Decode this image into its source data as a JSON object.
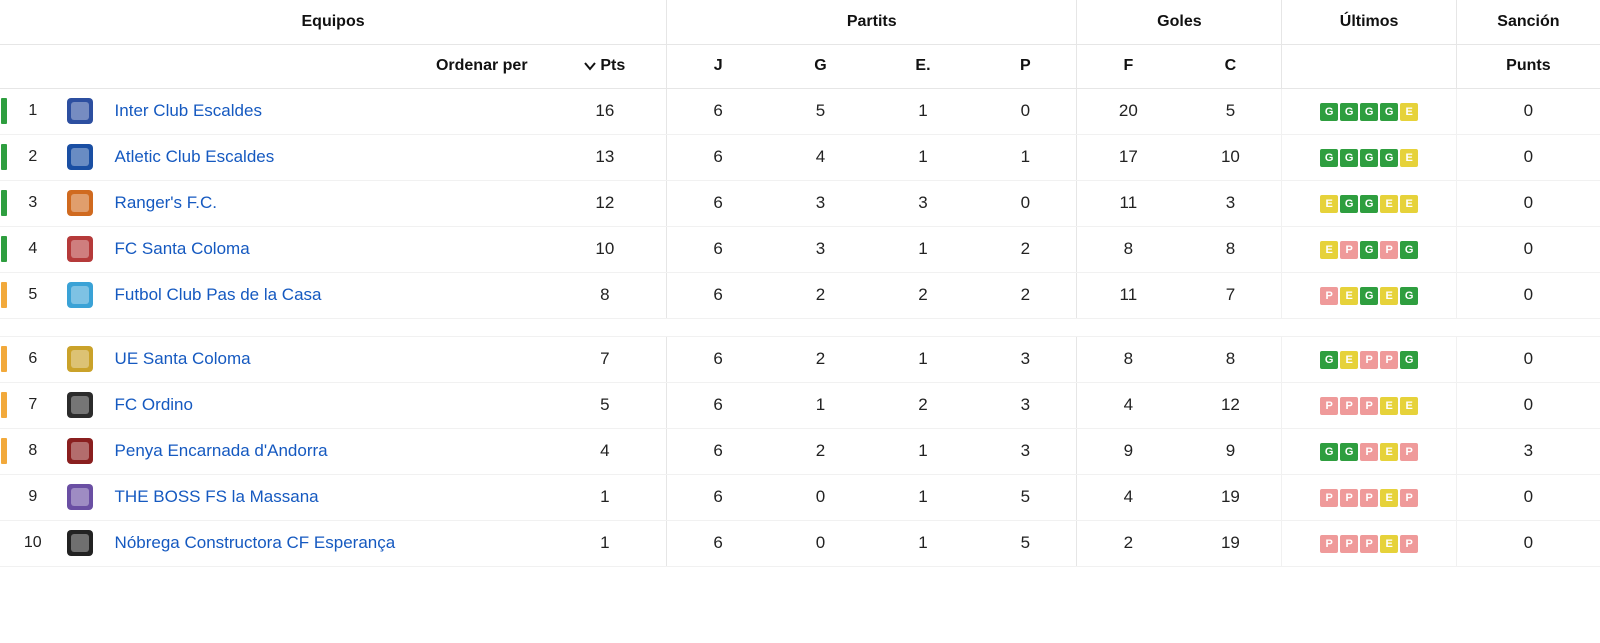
{
  "colors": {
    "link": "#1559c0",
    "form": {
      "G": "#2e9e3f",
      "E": "#e6d23a",
      "P": "#ef9a9a"
    },
    "marker": {
      "green": "#2e9e3f",
      "orange": "#f2a93b",
      "none": "transparent"
    }
  },
  "headers": {
    "groups": {
      "equipos": "Equipos",
      "partits": "Partits",
      "goles": "Goles",
      "ultimos": "Últimos",
      "sancion": "Sanción"
    },
    "sort_label": "Ordenar per",
    "subs": {
      "pts": "Pts",
      "j": "J",
      "g": "G",
      "e": "E.",
      "p": "P",
      "f": "F",
      "c": "C",
      "punts": "Punts"
    }
  },
  "gap_after_rank": 5,
  "teams": [
    {
      "rank": 1,
      "marker": "green",
      "crest_color": "#2d4fa0",
      "name": "Inter Club Escaldes",
      "pts": 16,
      "j": 6,
      "g": 5,
      "e": 1,
      "p": 0,
      "f": 20,
      "c": 5,
      "form": [
        "G",
        "G",
        "G",
        "G",
        "E"
      ],
      "sancion": 0
    },
    {
      "rank": 2,
      "marker": "green",
      "crest_color": "#1a4fa3",
      "name": "Atletic Club Escaldes",
      "pts": 13,
      "j": 6,
      "g": 4,
      "e": 1,
      "p": 1,
      "f": 17,
      "c": 10,
      "form": [
        "G",
        "G",
        "G",
        "G",
        "E"
      ],
      "sancion": 0
    },
    {
      "rank": 3,
      "marker": "green",
      "crest_color": "#d06a1f",
      "name": "Ranger's F.C.",
      "pts": 12,
      "j": 6,
      "g": 3,
      "e": 3,
      "p": 0,
      "f": 11,
      "c": 3,
      "form": [
        "E",
        "G",
        "G",
        "E",
        "E"
      ],
      "sancion": 0
    },
    {
      "rank": 4,
      "marker": "green",
      "crest_color": "#b53a3a",
      "name": "FC Santa Coloma",
      "pts": 10,
      "j": 6,
      "g": 3,
      "e": 1,
      "p": 2,
      "f": 8,
      "c": 8,
      "form": [
        "E",
        "P",
        "G",
        "P",
        "G"
      ],
      "sancion": 0
    },
    {
      "rank": 5,
      "marker": "orange",
      "crest_color": "#3aa2d6",
      "name": "Futbol Club Pas de la Casa",
      "pts": 8,
      "j": 6,
      "g": 2,
      "e": 2,
      "p": 2,
      "f": 11,
      "c": 7,
      "form": [
        "P",
        "E",
        "G",
        "E",
        "G"
      ],
      "sancion": 0
    },
    {
      "rank": 6,
      "marker": "orange",
      "crest_color": "#caa22a",
      "name": "UE Santa Coloma",
      "pts": 7,
      "j": 6,
      "g": 2,
      "e": 1,
      "p": 3,
      "f": 8,
      "c": 8,
      "form": [
        "G",
        "E",
        "P",
        "P",
        "G"
      ],
      "sancion": 0
    },
    {
      "rank": 7,
      "marker": "orange",
      "crest_color": "#2b2b2b",
      "name": "FC Ordino",
      "pts": 5,
      "j": 6,
      "g": 1,
      "e": 2,
      "p": 3,
      "f": 4,
      "c": 12,
      "form": [
        "P",
        "P",
        "P",
        "E",
        "E"
      ],
      "sancion": 0
    },
    {
      "rank": 8,
      "marker": "orange",
      "crest_color": "#8a1f1f",
      "name": "Penya Encarnada d'Andorra",
      "pts": 4,
      "j": 6,
      "g": 2,
      "e": 1,
      "p": 3,
      "f": 9,
      "c": 9,
      "form": [
        "G",
        "G",
        "P",
        "E",
        "P"
      ],
      "sancion": 3
    },
    {
      "rank": 9,
      "marker": "none",
      "crest_color": "#6a4fa3",
      "name": "THE BOSS FS la Massana",
      "pts": 1,
      "j": 6,
      "g": 0,
      "e": 1,
      "p": 5,
      "f": 4,
      "c": 19,
      "form": [
        "P",
        "P",
        "P",
        "E",
        "P"
      ],
      "sancion": 0
    },
    {
      "rank": 10,
      "marker": "none",
      "crest_color": "#222222",
      "name": "Nóbrega Constructora CF Esperança",
      "pts": 1,
      "j": 6,
      "g": 0,
      "e": 1,
      "p": 5,
      "f": 2,
      "c": 19,
      "form": [
        "P",
        "P",
        "P",
        "E",
        "P"
      ],
      "sancion": 0
    }
  ]
}
